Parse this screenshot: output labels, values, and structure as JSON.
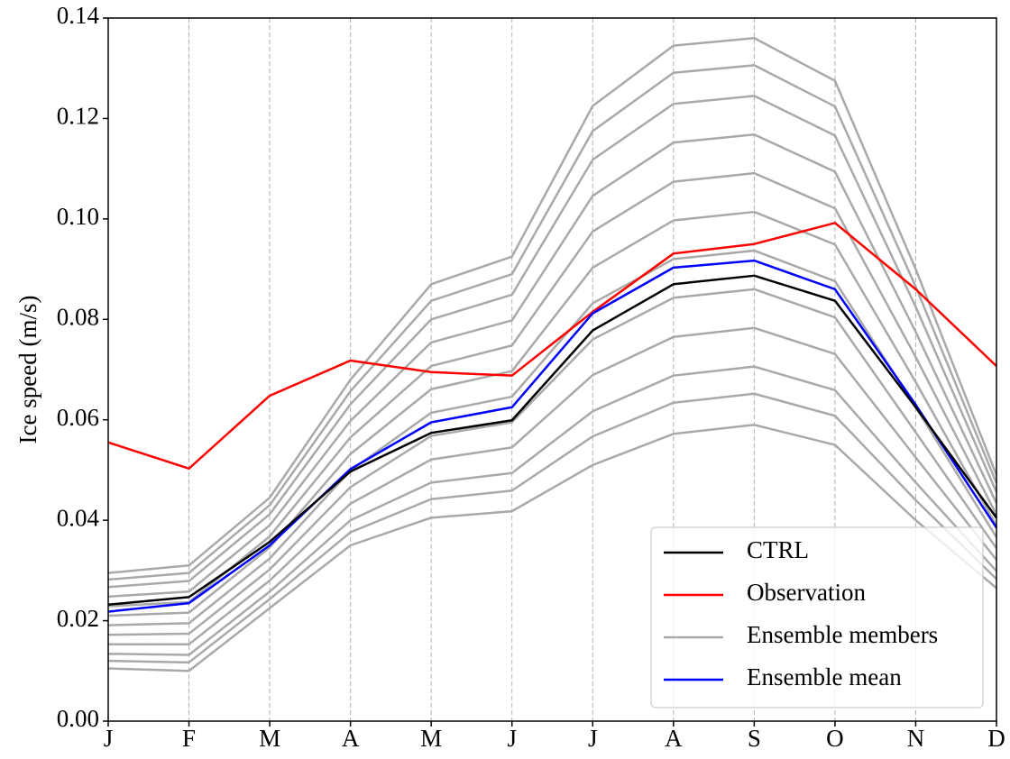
{
  "chart_data": {
    "type": "line",
    "y_label": "Ice speed (m/s)",
    "categories": [
      "J",
      "F",
      "M",
      "A",
      "M",
      "J",
      "J",
      "A",
      "S",
      "O",
      "N",
      "D"
    ],
    "ylim": [
      0,
      0.14
    ],
    "yticks": [
      {
        "value": 0,
        "label": "0.00"
      },
      {
        "value": 0.02,
        "label": "0.02"
      },
      {
        "value": 0.04,
        "label": "0.04"
      },
      {
        "value": 0.06,
        "label": "0.06"
      },
      {
        "value": 0.08,
        "label": "0.08"
      },
      {
        "value": 0.1,
        "label": "0.10"
      },
      {
        "value": 0.12,
        "label": "0.12"
      },
      {
        "value": 0.14,
        "label": "0.14"
      }
    ],
    "grid": "x",
    "legend": "lower right",
    "series": [
      {
        "name": "CTRL",
        "color": "#000000",
        "values": [
          0.0232,
          0.0247,
          0.0357,
          0.0497,
          0.0574,
          0.0599,
          0.0778,
          0.087,
          0.0887,
          0.0837,
          0.0625,
          0.0405
        ]
      },
      {
        "name": "Observation",
        "color": "#ff0000",
        "values": [
          0.0555,
          0.0503,
          0.0648,
          0.0718,
          0.0695,
          0.0688,
          0.0815,
          0.0931,
          0.095,
          0.0992,
          0.086,
          0.0707
        ]
      },
      {
        "name": "Ensemble members",
        "color": "#a9a9a9",
        "members": [
          [
            0.0105,
            0.01,
            0.0225,
            0.035,
            0.0405,
            0.0418,
            0.051,
            0.0572,
            0.059,
            0.055,
            0.04,
            0.0265
          ],
          [
            0.012,
            0.0117,
            0.0243,
            0.0376,
            0.0442,
            0.0459,
            0.0567,
            0.0634,
            0.0652,
            0.0608,
            0.044,
            0.0283
          ],
          [
            0.0134,
            0.0132,
            0.0258,
            0.04,
            0.0475,
            0.0494,
            0.0617,
            0.0688,
            0.0706,
            0.0659,
            0.0475,
            0.0299
          ],
          [
            0.0153,
            0.0153,
            0.028,
            0.0433,
            0.0521,
            0.0545,
            0.0689,
            0.0765,
            0.0783,
            0.0731,
            0.0525,
            0.0321
          ],
          [
            0.0172,
            0.0174,
            0.0302,
            0.0466,
            0.0568,
            0.0595,
            0.076,
            0.0843,
            0.086,
            0.0804,
            0.0575,
            0.0344
          ],
          [
            0.0191,
            0.0195,
            0.0324,
            0.0499,
            0.0614,
            0.0646,
            0.0832,
            0.092,
            0.0937,
            0.0876,
            0.0625,
            0.0366
          ],
          [
            0.021,
            0.0216,
            0.0346,
            0.0532,
            0.0661,
            0.0697,
            0.0903,
            0.0997,
            0.1014,
            0.0949,
            0.0675,
            0.0389
          ],
          [
            0.0229,
            0.0237,
            0.0368,
            0.0565,
            0.0707,
            0.0748,
            0.0975,
            0.1074,
            0.1091,
            0.1021,
            0.0725,
            0.0411
          ],
          [
            0.0248,
            0.0258,
            0.039,
            0.0598,
            0.0754,
            0.0798,
            0.1046,
            0.1152,
            0.1168,
            0.1094,
            0.0775,
            0.0434
          ],
          [
            0.0267,
            0.0279,
            0.0412,
            0.0631,
            0.08,
            0.0849,
            0.1118,
            0.1229,
            0.1245,
            0.1166,
            0.0825,
            0.0456
          ],
          [
            0.0282,
            0.0295,
            0.043,
            0.0657,
            0.0837,
            0.089,
            0.1175,
            0.1291,
            0.1306,
            0.1224,
            0.0865,
            0.0474
          ],
          [
            0.0295,
            0.031,
            0.0445,
            0.068,
            0.087,
            0.0925,
            0.1225,
            0.1345,
            0.136,
            0.1275,
            0.09,
            0.049
          ]
        ]
      },
      {
        "name": "Ensemble mean",
        "color": "#0000ff",
        "values": [
          0.0218,
          0.0235,
          0.035,
          0.0502,
          0.0595,
          0.0625,
          0.0812,
          0.0903,
          0.0917,
          0.086,
          0.063,
          0.0385
        ]
      }
    ]
  }
}
